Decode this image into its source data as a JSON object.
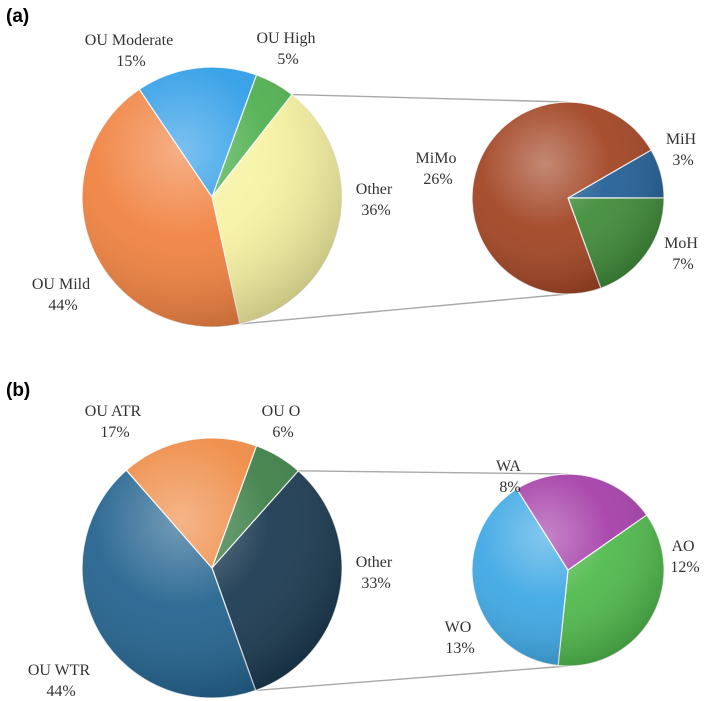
{
  "chart_data": [
    {
      "panel": "(a)",
      "type": "pie",
      "main_pie": [
        {
          "label": "OU High",
          "value": 5,
          "value_text": "5%",
          "color": "#4cae4c"
        },
        {
          "label": "Other",
          "value": 36,
          "value_text": "36%",
          "color": "#f6f2a0",
          "exploded_to": "secondary"
        },
        {
          "label": "OU Mild",
          "value": 44,
          "value_text": "44%",
          "color": "#f07f3c"
        },
        {
          "label": "OU Moderate",
          "value": 15,
          "value_text": "15%",
          "color": "#2a9be6"
        }
      ],
      "secondary_pie": [
        {
          "label": "MiH",
          "value": 3,
          "value_text": "3%",
          "color": "#1f5c94"
        },
        {
          "label": "MoH",
          "value": 7,
          "value_text": "7%",
          "color": "#3c8a36"
        },
        {
          "label": "MiMo",
          "value": 26,
          "value_text": "26%",
          "color": "#a0401e"
        }
      ]
    },
    {
      "panel": "(b)",
      "type": "pie",
      "main_pie": [
        {
          "label": "OU O",
          "value": 6,
          "value_text": "6%",
          "color": "#3a7d44"
        },
        {
          "label": "Other",
          "value": 33,
          "value_text": "33%",
          "color": "#17364e",
          "exploded_to": "secondary"
        },
        {
          "label": "OU WTR",
          "value": 44,
          "value_text": "44%",
          "color": "#1e5f8c"
        },
        {
          "label": "OU ATR",
          "value": 17,
          "value_text": "17%",
          "color": "#ee8840"
        }
      ],
      "secondary_pie": [
        {
          "label": "AO",
          "value": 12,
          "value_text": "12%",
          "color": "#4cb848"
        },
        {
          "label": "WO",
          "value": 13,
          "value_text": "13%",
          "color": "#3aa6e4"
        },
        {
          "label": "WA",
          "value": 8,
          "value_text": "8%",
          "color": "#a33aa6"
        }
      ]
    }
  ]
}
